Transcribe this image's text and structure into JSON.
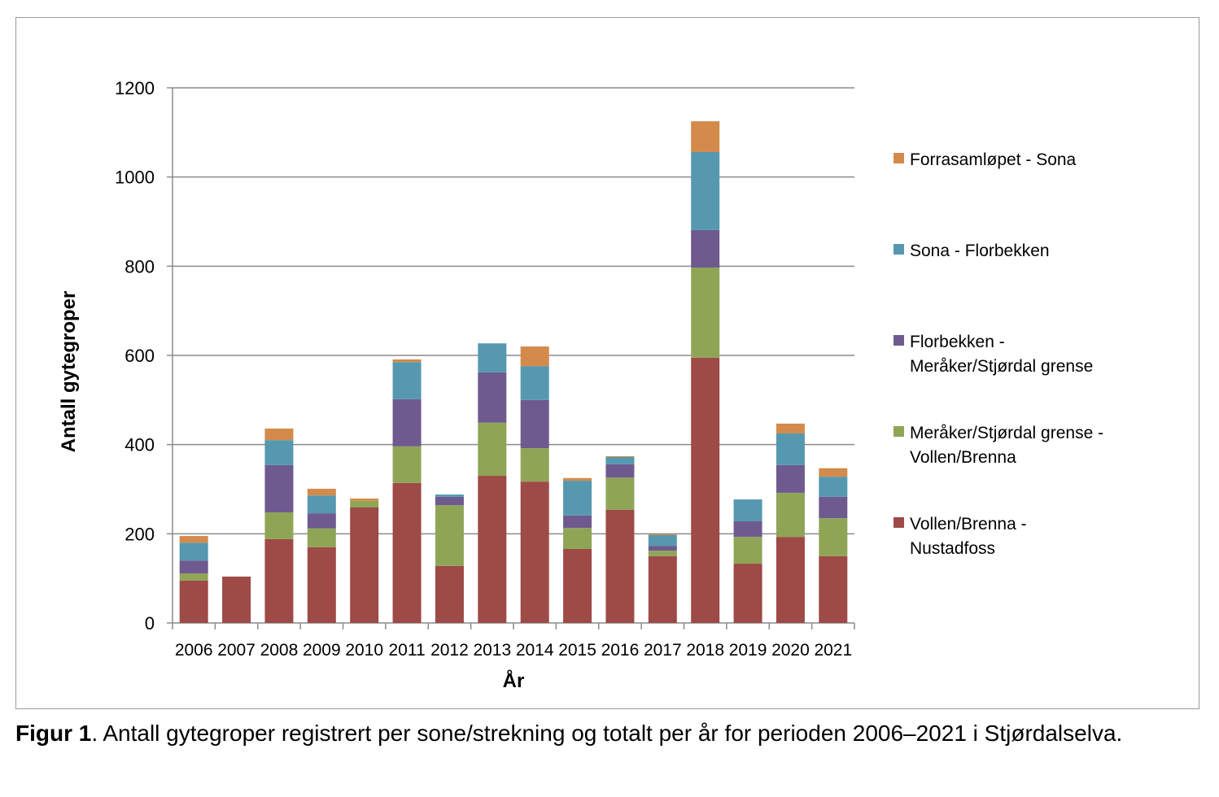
{
  "chart_data": {
    "type": "bar",
    "stacked": true,
    "ylabel": "Antall gytegroper",
    "xlabel": "År",
    "ylim": [
      0,
      1200
    ],
    "yticks": [
      0,
      200,
      400,
      600,
      800,
      1000,
      1200
    ],
    "grid": true,
    "legend_position": "right",
    "categories": [
      "2006",
      "2007",
      "2008",
      "2009",
      "2010",
      "2011",
      "2012",
      "2013",
      "2014",
      "2015",
      "2016",
      "2017",
      "2018",
      "2019",
      "2020",
      "2021"
    ],
    "series": [
      {
        "name": "Vollen/Brenna - Nustadfoss",
        "color": "#9e4a47",
        "values": [
          95,
          104,
          188,
          170,
          259,
          314,
          128,
          330,
          317,
          166,
          254,
          150,
          595,
          133,
          193,
          150
        ]
      },
      {
        "name": "Meråker/Stjørdal grense - Vollen/Brenna",
        "color": "#8fa556",
        "values": [
          16,
          0,
          60,
          42,
          15,
          82,
          136,
          119,
          75,
          47,
          72,
          12,
          202,
          60,
          99,
          85
        ]
      },
      {
        "name": "Florbekken - Meråker/Stjørdal grense",
        "color": "#6e5a8f",
        "values": [
          29,
          0,
          106,
          34,
          0,
          106,
          19,
          113,
          108,
          28,
          30,
          11,
          84,
          35,
          62,
          48
        ]
      },
      {
        "name": "Sona - Florbekken",
        "color": "#5698b0",
        "values": [
          40,
          0,
          56,
          40,
          0,
          83,
          5,
          65,
          76,
          78,
          16,
          24,
          175,
          49,
          71,
          45
        ]
      },
      {
        "name": "Forrasamløpet - Sona",
        "color": "#d38a4b",
        "values": [
          15,
          0,
          26,
          15,
          5,
          6,
          0,
          0,
          44,
          6,
          2,
          2,
          69,
          0,
          22,
          19
        ]
      }
    ],
    "legend_lines": [
      [
        "Forrasamløpet - Sona"
      ],
      [
        "Sona - Florbekken"
      ],
      [
        "Florbekken -",
        "Meråker/Stjørdal grense"
      ],
      [
        "Meråker/Stjørdal grense -",
        "Vollen/Brenna"
      ],
      [
        "Vollen/Brenna -",
        "Nustadfoss"
      ]
    ]
  },
  "caption": {
    "label": "Figur 1",
    "text": ". Antall gytegroper registrert per sone/strekning og totalt per år for perioden 2006–2021 i Stjørdalselva."
  }
}
